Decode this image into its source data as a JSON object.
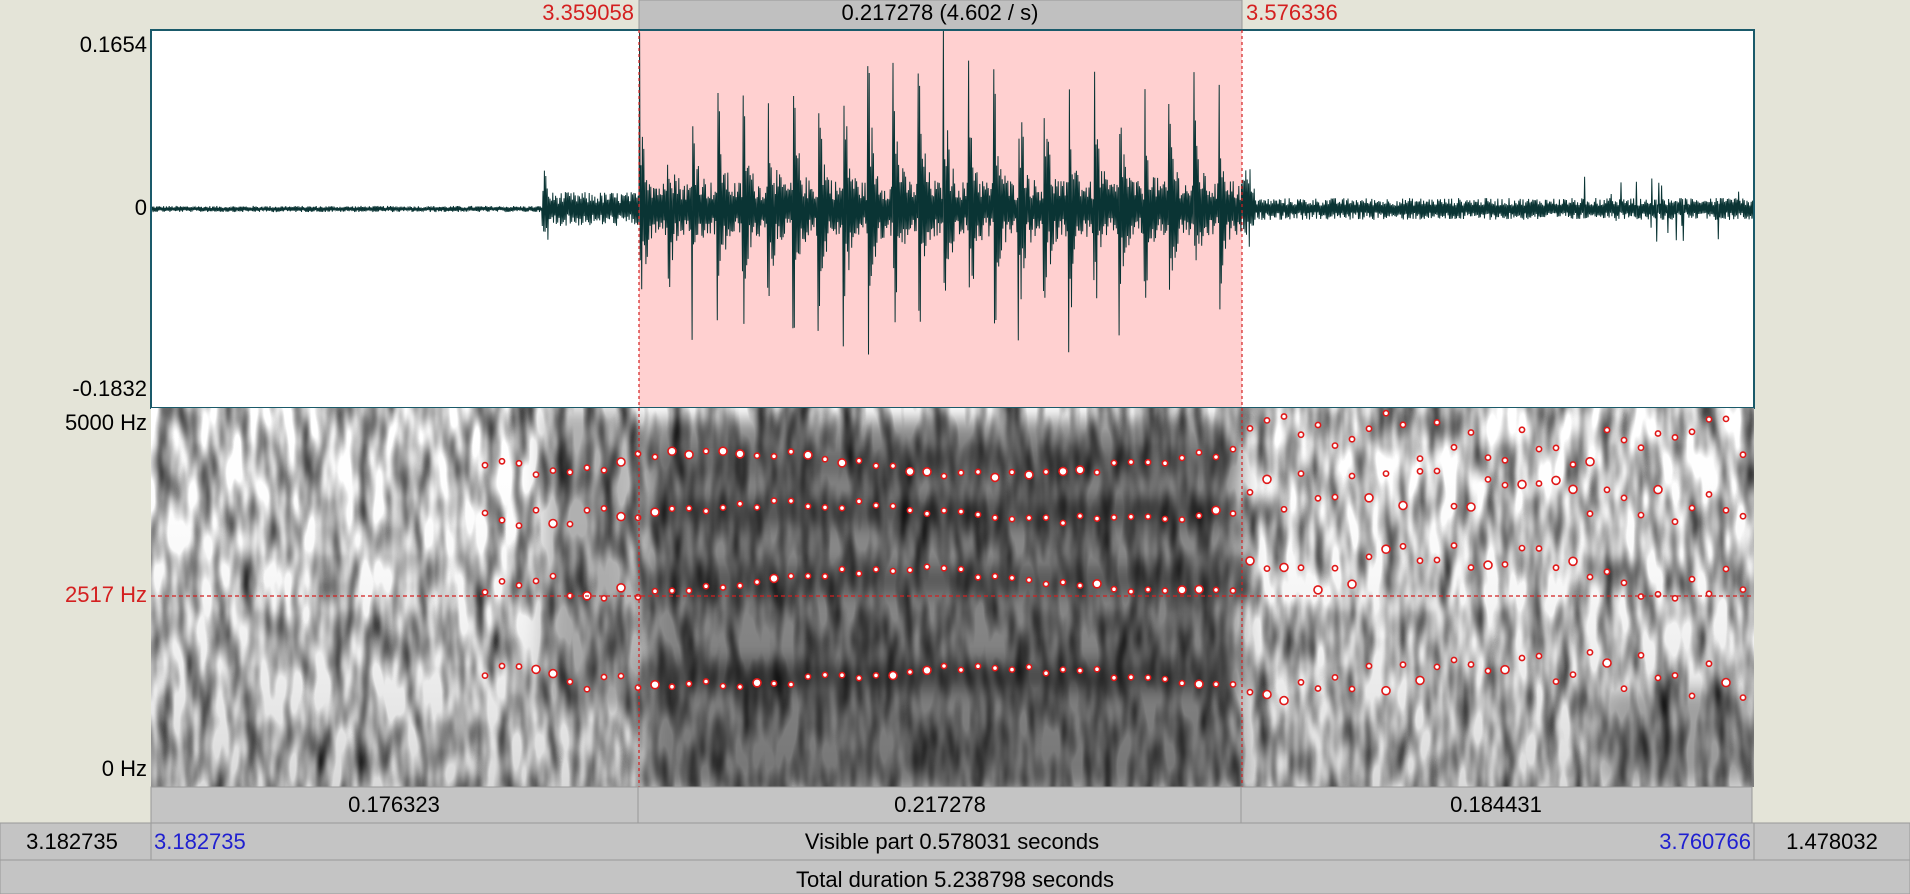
{
  "selection": {
    "start": "3.359058",
    "length": "0.217278 (4.602 / s)",
    "end": "3.576336"
  },
  "waveform": {
    "max": "0.1654",
    "zero": "0",
    "min": "-0.1832"
  },
  "spectrogram": {
    "max": "5000 Hz",
    "cursor": "2517 Hz",
    "min": "0 Hz"
  },
  "segments": [
    "0.176323",
    "0.217278",
    "0.184431"
  ],
  "visible": {
    "left_total": "3.182735",
    "start": "3.182735",
    "label": "Visible part 0.578031 seconds",
    "end": "3.760766",
    "right_total": "1.478032"
  },
  "total": "Total duration 5.238798 seconds"
}
